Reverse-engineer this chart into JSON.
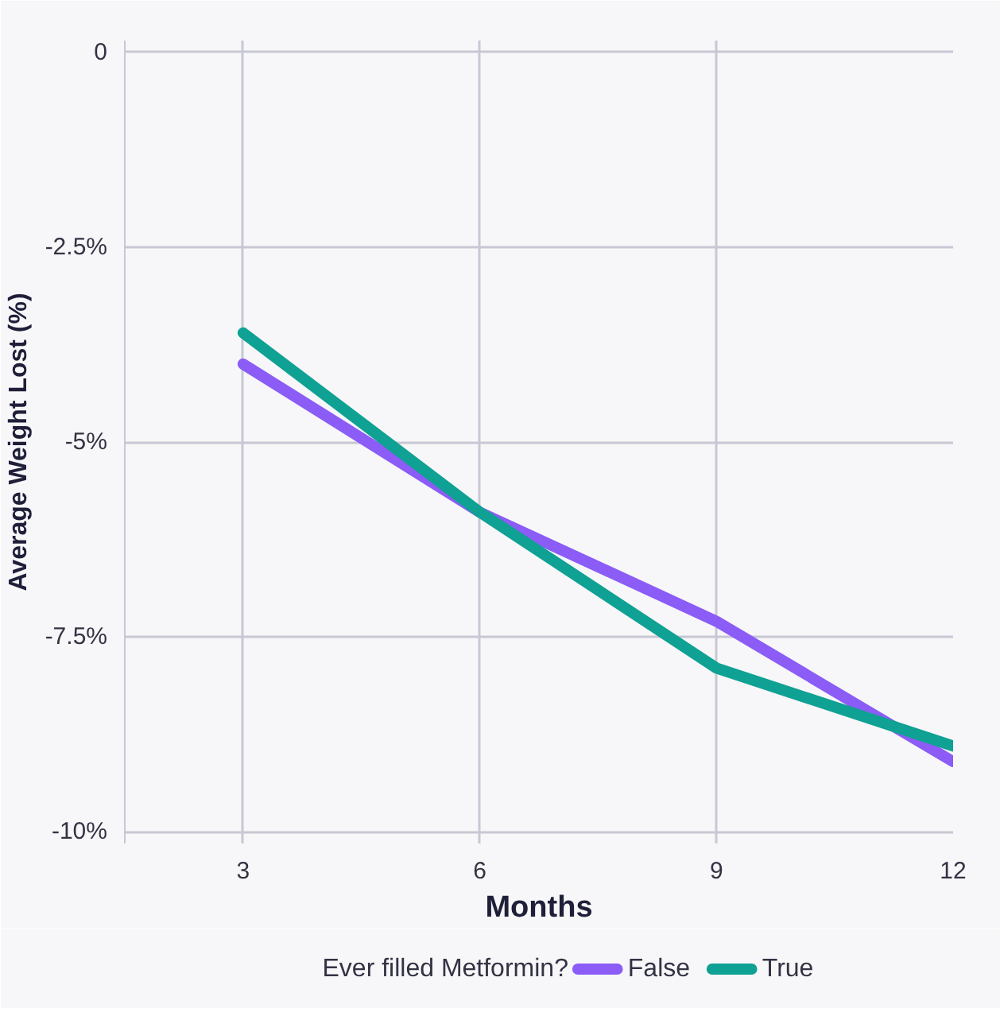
{
  "chart_data": {
    "type": "line",
    "xlabel": "Months",
    "ylabel": "Average Weight Lost (%)",
    "legend_title": "Ever filled Metformin?",
    "x": [
      3,
      6,
      9,
      12
    ],
    "series": [
      {
        "name": "False",
        "color": "#8b5cf6",
        "values": [
          -4.0,
          -5.9,
          -7.3,
          -9.1
        ]
      },
      {
        "name": "True",
        "color": "#0fa193",
        "values": [
          -3.6,
          -5.9,
          -7.9,
          -8.9
        ]
      }
    ],
    "xlim": [
      1.5,
      12
    ],
    "ylim": [
      -10.15,
      0.15
    ],
    "xticks": [
      3,
      6,
      9,
      12
    ],
    "yticks": [
      0,
      {
        "value": -2.5,
        "label": "-2.5%"
      },
      {
        "value": -5,
        "label": "-5%"
      },
      {
        "value": -7.5,
        "label": "-7.5%"
      },
      {
        "value": -10,
        "label": "-10%"
      }
    ],
    "grid": true,
    "legend": "bottom",
    "marker": "none",
    "line_style": "solid"
  }
}
